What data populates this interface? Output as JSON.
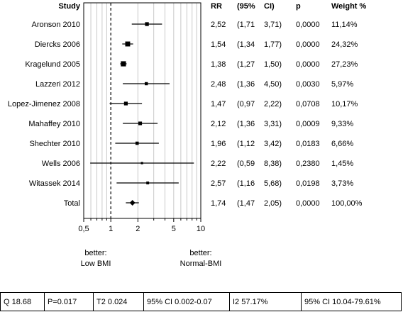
{
  "chart_data": {
    "type": "forest",
    "headers": [
      "Study",
      "RR",
      "(95%",
      "CI)",
      "p",
      "Weight %"
    ],
    "xscale": "log",
    "xlim": [
      0.5,
      10
    ],
    "xticks": [
      {
        "value": 0.5,
        "label": "0,5"
      },
      {
        "value": 1,
        "label": "1"
      },
      {
        "value": 2,
        "label": "2"
      },
      {
        "value": 5,
        "label": "5"
      },
      {
        "value": 10,
        "label": "10"
      }
    ],
    "minor_ticks": [
      0.6,
      0.7,
      0.8,
      0.9,
      3,
      4,
      6,
      7,
      8,
      9
    ],
    "reference_line": 1,
    "grid": true,
    "rows": [
      {
        "study": "Aronson 2010",
        "rr": 2.52,
        "lo": 1.71,
        "hi": 3.71,
        "rr_text": "2,52",
        "lo_text": "(1,71",
        "hi_text": "3,71)",
        "p_text": "0,0000",
        "weight_text": "11,14%",
        "weight": 11.14
      },
      {
        "study": "Diercks 2006",
        "rr": 1.54,
        "lo": 1.34,
        "hi": 1.77,
        "rr_text": "1,54",
        "lo_text": "(1,34",
        "hi_text": "1,77)",
        "p_text": "0,0000",
        "weight_text": "24,32%",
        "weight": 24.32
      },
      {
        "study": "Kragelund 2005",
        "rr": 1.38,
        "lo": 1.27,
        "hi": 1.5,
        "rr_text": "1,38",
        "lo_text": "(1,27",
        "hi_text": "1,50)",
        "p_text": "0,0000",
        "weight_text": "27,23%",
        "weight": 27.23
      },
      {
        "study": "Lazzeri 2012",
        "rr": 2.48,
        "lo": 1.36,
        "hi": 4.5,
        "rr_text": "2,48",
        "lo_text": "(1,36",
        "hi_text": "4,50)",
        "p_text": "0,0030",
        "weight_text": "5,97%",
        "weight": 5.97
      },
      {
        "study": "Lopez-Jimenez 2008",
        "rr": 1.47,
        "lo": 0.97,
        "hi": 2.22,
        "rr_text": "1,47",
        "lo_text": "(0,97",
        "hi_text": "2,22)",
        "p_text": "0,0708",
        "weight_text": "10,17%",
        "weight": 10.17
      },
      {
        "study": "Mahaffey 2010",
        "rr": 2.12,
        "lo": 1.36,
        "hi": 3.31,
        "rr_text": "2,12",
        "lo_text": "(1,36",
        "hi_text": "3,31)",
        "p_text": "0,0009",
        "weight_text": "9,33%",
        "weight": 9.33
      },
      {
        "study": "Shechter 2010",
        "rr": 1.96,
        "lo": 1.12,
        "hi": 3.42,
        "rr_text": "1,96",
        "lo_text": "(1,12",
        "hi_text": "3,42)",
        "p_text": "0,0183",
        "weight_text": "6,66%",
        "weight": 6.66
      },
      {
        "study": "Wells 2006",
        "rr": 2.22,
        "lo": 0.59,
        "hi": 8.38,
        "rr_text": "2,22",
        "lo_text": "(0,59",
        "hi_text": "8,38)",
        "p_text": "0,2380",
        "weight_text": "1,45%",
        "weight": 1.45
      },
      {
        "study": "Witassek 2014",
        "rr": 2.57,
        "lo": 1.16,
        "hi": 5.68,
        "rr_text": "2,57",
        "lo_text": "(1,16",
        "hi_text": "5,68)",
        "p_text": "0,0198",
        "weight_text": "3,73%",
        "weight": 3.73
      },
      {
        "study": "Total",
        "rr": 1.74,
        "lo": 1.47,
        "hi": 2.05,
        "rr_text": "1,74",
        "lo_text": "(1,47",
        "hi_text": "2,05)",
        "p_text": "0,0000",
        "weight_text": "100,00%",
        "weight": 100,
        "is_total": true
      }
    ],
    "favors_left": [
      "better:",
      "Low BMI"
    ],
    "favors_right": [
      "better:",
      "Normal-BMI"
    ]
  },
  "stats": [
    "Q 18.68",
    "P=0.017",
    "T2 0.024",
    "95% CI 0.002-0.07",
    "I2 57.17%",
    "95% CI 10.04-79.61%"
  ]
}
